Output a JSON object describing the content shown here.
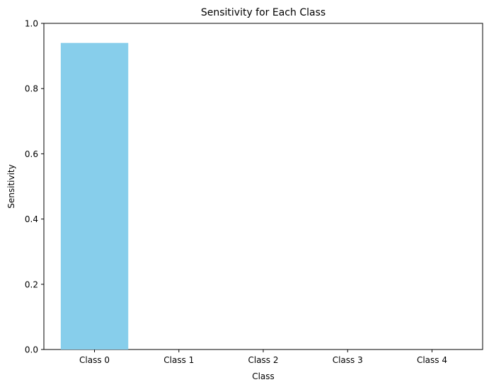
{
  "chart_data": {
    "type": "bar",
    "title": "Sensitivity for Each Class",
    "xlabel": "Class",
    "ylabel": "Sensitivity",
    "categories": [
      "Class 0",
      "Class 1",
      "Class 2",
      "Class 3",
      "Class 4"
    ],
    "values": [
      0.94,
      0.0,
      0.0,
      0.0,
      0.0
    ],
    "ylim": [
      0,
      1.0
    ],
    "yticks": [
      "0.0",
      "0.2",
      "0.4",
      "0.6",
      "0.8",
      "1.0"
    ],
    "grid": false,
    "legend": "none",
    "bar_color": "#87ceeb"
  }
}
